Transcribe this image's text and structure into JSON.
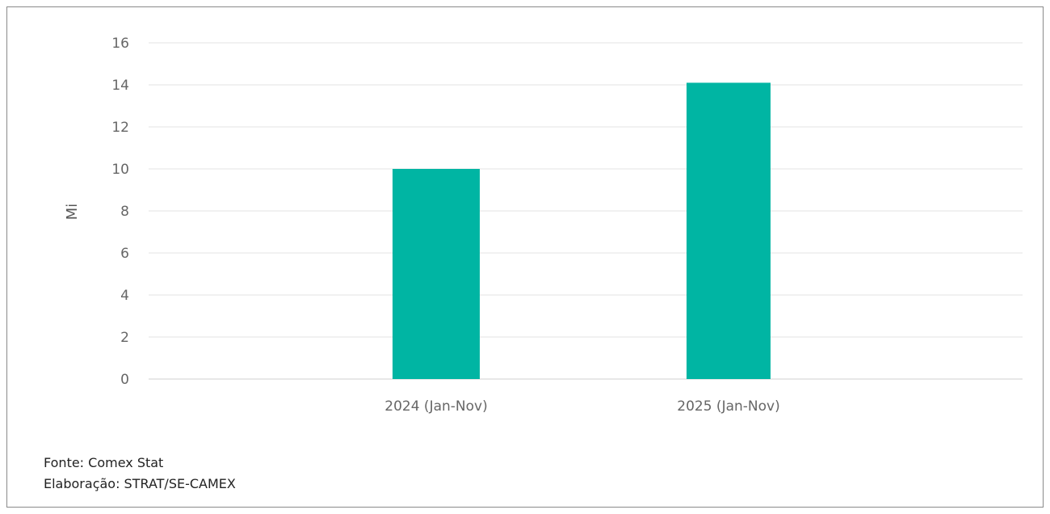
{
  "chart_data": {
    "type": "bar",
    "title": "",
    "xlabel": "",
    "ylabel": "Mi",
    "categories": [
      "2024 (Jan-Nov)",
      "2025 (Jan-Nov)"
    ],
    "values": [
      10.0,
      14.1
    ],
    "ylim": [
      0,
      16
    ],
    "yticks": [
      "0",
      "2",
      "4",
      "6",
      "8",
      "10",
      "12",
      "14",
      "16"
    ],
    "grid": true,
    "legend": "none",
    "bar_color": "#00b5a3",
    "grid_color": "#e3e3e3",
    "axis_color": "#cfcfcf",
    "tick_label_color": "#666666"
  },
  "footer": {
    "source": "Fonte: Comex Stat",
    "elaboration": "Elaboração: STRAT/SE-CAMEX"
  }
}
